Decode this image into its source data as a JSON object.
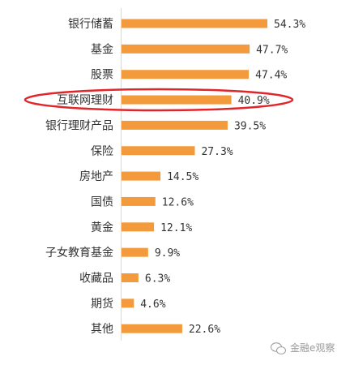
{
  "chart_data": {
    "type": "bar",
    "orientation": "horizontal",
    "categories": [
      "银行储蓄",
      "基金",
      "股票",
      "互联网理财",
      "银行理财产品",
      "保险",
      "房地产",
      "国债",
      "黄金",
      "子女教育基金",
      "收藏品",
      "期货",
      "其他"
    ],
    "values": [
      54.3,
      47.7,
      47.4,
      40.9,
      39.5,
      27.3,
      14.5,
      12.6,
      12.1,
      9.9,
      6.3,
      4.6,
      22.6
    ],
    "value_labels": [
      "54.3%",
      "47.7%",
      "47.4%",
      "40.9%",
      "39.5%",
      "27.3%",
      "14.5%",
      "12.6%",
      "12.1%",
      "9.9%",
      "6.3%",
      "4.6%",
      "22.6%"
    ],
    "bar_color": "#F39A3C",
    "highlight": {
      "category": "互联网理财",
      "color": "#E0262B"
    },
    "xlim": [
      0,
      60
    ],
    "grid": false,
    "legend": "none"
  },
  "watermark": {
    "icon": "wechat-icon",
    "text": "金融e观察"
  }
}
